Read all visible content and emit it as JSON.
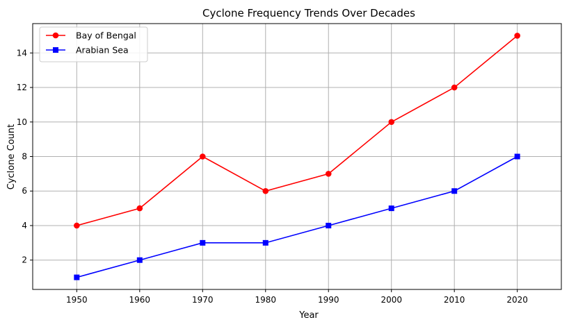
{
  "chart_data": {
    "type": "line",
    "title": "Cyclone Frequency Trends Over Decades",
    "xlabel": "Year",
    "ylabel": "Cyclone Count",
    "x": [
      1950,
      1960,
      1970,
      1980,
      1990,
      2000,
      2010,
      2020
    ],
    "xlim": [
      1943,
      2027
    ],
    "ylim": [
      0.3,
      15.7
    ],
    "yticks": [
      2,
      4,
      6,
      8,
      10,
      12,
      14
    ],
    "grid": true,
    "legend_position": "top-left",
    "series": [
      {
        "name": "Bay of Bengal",
        "values": [
          4,
          5,
          8,
          6,
          7,
          10,
          12,
          15
        ],
        "color": "#ff0000",
        "marker": "circle"
      },
      {
        "name": "Arabian Sea",
        "values": [
          1,
          2,
          3,
          3,
          4,
          5,
          6,
          8
        ],
        "color": "#0000ff",
        "marker": "square"
      }
    ]
  }
}
